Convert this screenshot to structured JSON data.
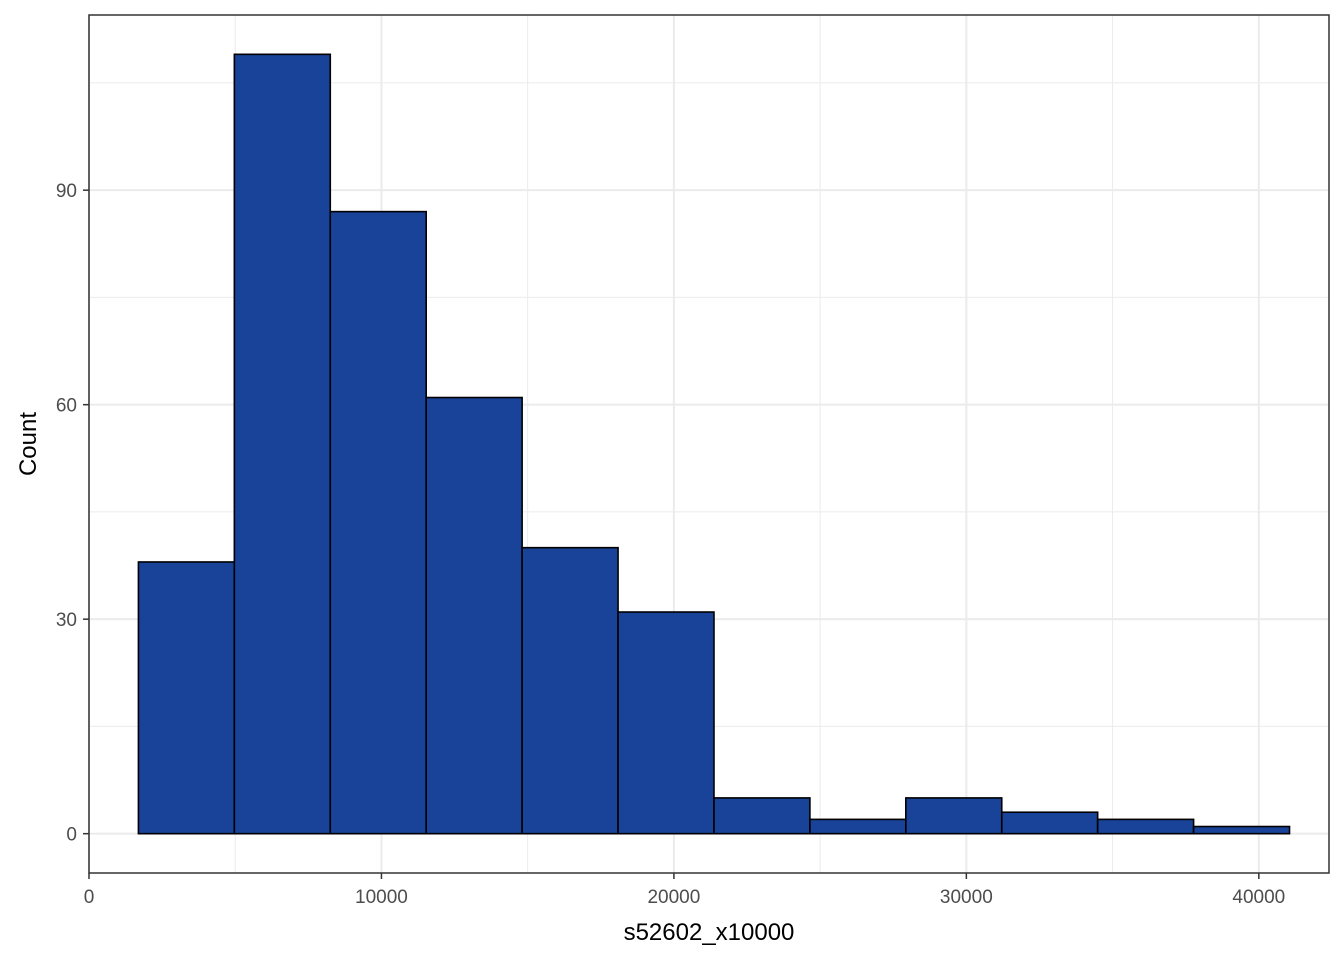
{
  "chart_data": {
    "type": "bar",
    "subtype": "histogram",
    "xlabel": "s52602_x10000",
    "ylabel": "Count",
    "xlim": [
      0,
      42400
    ],
    "ylim": [
      -5.5,
      114.5
    ],
    "x_ticks": [
      0,
      10000,
      20000,
      30000,
      40000
    ],
    "x_tick_labels": [
      "0",
      "10000",
      "20000",
      "30000",
      "40000"
    ],
    "y_ticks": [
      0,
      30,
      60,
      90
    ],
    "y_tick_labels": [
      "0",
      "30",
      "60",
      "90"
    ],
    "bins": [
      {
        "start": 1690,
        "end": 4970,
        "count": 38
      },
      {
        "start": 4970,
        "end": 8250,
        "count": 109
      },
      {
        "start": 8250,
        "end": 11530,
        "count": 87
      },
      {
        "start": 11530,
        "end": 14810,
        "count": 61
      },
      {
        "start": 14810,
        "end": 18090,
        "count": 40
      },
      {
        "start": 18090,
        "end": 21370,
        "count": 31
      },
      {
        "start": 21370,
        "end": 24650,
        "count": 5
      },
      {
        "start": 24650,
        "end": 27930,
        "count": 2
      },
      {
        "start": 27930,
        "end": 31210,
        "count": 5
      },
      {
        "start": 31210,
        "end": 34490,
        "count": 3
      },
      {
        "start": 34490,
        "end": 37770,
        "count": 2
      },
      {
        "start": 37770,
        "end": 41050,
        "count": 1
      }
    ],
    "grid": true,
    "legend": "none",
    "colors": {
      "bar_fill": "#184399",
      "bar_stroke": "#000000",
      "grid": "#ebebeb",
      "panel_border": "#333333"
    }
  }
}
